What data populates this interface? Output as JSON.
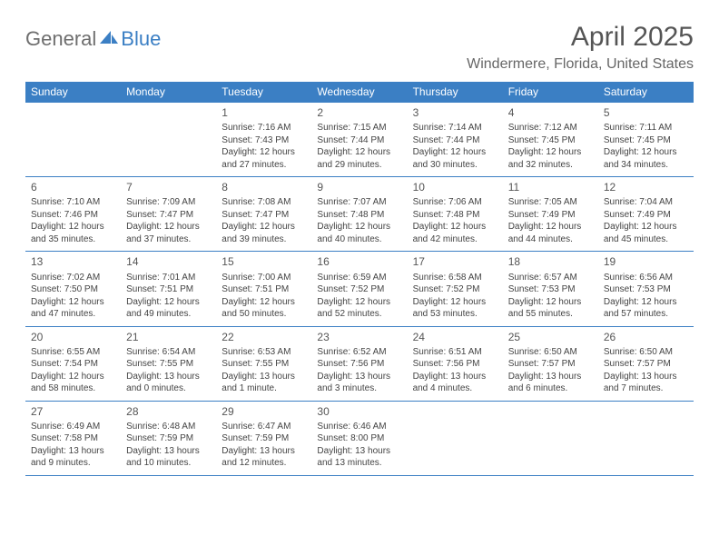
{
  "logo": {
    "word1": "General",
    "word2": "Blue"
  },
  "title": "April 2025",
  "location": "Windermere, Florida, United States",
  "colors": {
    "header_bg": "#3b7fc4",
    "header_text": "#ffffff",
    "border": "#3b7fc4",
    "logo_gray": "#6e6e6e",
    "logo_blue": "#3b7fc4",
    "title_color": "#555555",
    "body_text": "#444444"
  },
  "weekdays": [
    "Sunday",
    "Monday",
    "Tuesday",
    "Wednesday",
    "Thursday",
    "Friday",
    "Saturday"
  ],
  "weeks": [
    [
      null,
      null,
      {
        "d": "1",
        "sr": "Sunrise: 7:16 AM",
        "ss": "Sunset: 7:43 PM",
        "dl": "Daylight: 12 hours and 27 minutes."
      },
      {
        "d": "2",
        "sr": "Sunrise: 7:15 AM",
        "ss": "Sunset: 7:44 PM",
        "dl": "Daylight: 12 hours and 29 minutes."
      },
      {
        "d": "3",
        "sr": "Sunrise: 7:14 AM",
        "ss": "Sunset: 7:44 PM",
        "dl": "Daylight: 12 hours and 30 minutes."
      },
      {
        "d": "4",
        "sr": "Sunrise: 7:12 AM",
        "ss": "Sunset: 7:45 PM",
        "dl": "Daylight: 12 hours and 32 minutes."
      },
      {
        "d": "5",
        "sr": "Sunrise: 7:11 AM",
        "ss": "Sunset: 7:45 PM",
        "dl": "Daylight: 12 hours and 34 minutes."
      }
    ],
    [
      {
        "d": "6",
        "sr": "Sunrise: 7:10 AM",
        "ss": "Sunset: 7:46 PM",
        "dl": "Daylight: 12 hours and 35 minutes."
      },
      {
        "d": "7",
        "sr": "Sunrise: 7:09 AM",
        "ss": "Sunset: 7:47 PM",
        "dl": "Daylight: 12 hours and 37 minutes."
      },
      {
        "d": "8",
        "sr": "Sunrise: 7:08 AM",
        "ss": "Sunset: 7:47 PM",
        "dl": "Daylight: 12 hours and 39 minutes."
      },
      {
        "d": "9",
        "sr": "Sunrise: 7:07 AM",
        "ss": "Sunset: 7:48 PM",
        "dl": "Daylight: 12 hours and 40 minutes."
      },
      {
        "d": "10",
        "sr": "Sunrise: 7:06 AM",
        "ss": "Sunset: 7:48 PM",
        "dl": "Daylight: 12 hours and 42 minutes."
      },
      {
        "d": "11",
        "sr": "Sunrise: 7:05 AM",
        "ss": "Sunset: 7:49 PM",
        "dl": "Daylight: 12 hours and 44 minutes."
      },
      {
        "d": "12",
        "sr": "Sunrise: 7:04 AM",
        "ss": "Sunset: 7:49 PM",
        "dl": "Daylight: 12 hours and 45 minutes."
      }
    ],
    [
      {
        "d": "13",
        "sr": "Sunrise: 7:02 AM",
        "ss": "Sunset: 7:50 PM",
        "dl": "Daylight: 12 hours and 47 minutes."
      },
      {
        "d": "14",
        "sr": "Sunrise: 7:01 AM",
        "ss": "Sunset: 7:51 PM",
        "dl": "Daylight: 12 hours and 49 minutes."
      },
      {
        "d": "15",
        "sr": "Sunrise: 7:00 AM",
        "ss": "Sunset: 7:51 PM",
        "dl": "Daylight: 12 hours and 50 minutes."
      },
      {
        "d": "16",
        "sr": "Sunrise: 6:59 AM",
        "ss": "Sunset: 7:52 PM",
        "dl": "Daylight: 12 hours and 52 minutes."
      },
      {
        "d": "17",
        "sr": "Sunrise: 6:58 AM",
        "ss": "Sunset: 7:52 PM",
        "dl": "Daylight: 12 hours and 53 minutes."
      },
      {
        "d": "18",
        "sr": "Sunrise: 6:57 AM",
        "ss": "Sunset: 7:53 PM",
        "dl": "Daylight: 12 hours and 55 minutes."
      },
      {
        "d": "19",
        "sr": "Sunrise: 6:56 AM",
        "ss": "Sunset: 7:53 PM",
        "dl": "Daylight: 12 hours and 57 minutes."
      }
    ],
    [
      {
        "d": "20",
        "sr": "Sunrise: 6:55 AM",
        "ss": "Sunset: 7:54 PM",
        "dl": "Daylight: 12 hours and 58 minutes."
      },
      {
        "d": "21",
        "sr": "Sunrise: 6:54 AM",
        "ss": "Sunset: 7:55 PM",
        "dl": "Daylight: 13 hours and 0 minutes."
      },
      {
        "d": "22",
        "sr": "Sunrise: 6:53 AM",
        "ss": "Sunset: 7:55 PM",
        "dl": "Daylight: 13 hours and 1 minute."
      },
      {
        "d": "23",
        "sr": "Sunrise: 6:52 AM",
        "ss": "Sunset: 7:56 PM",
        "dl": "Daylight: 13 hours and 3 minutes."
      },
      {
        "d": "24",
        "sr": "Sunrise: 6:51 AM",
        "ss": "Sunset: 7:56 PM",
        "dl": "Daylight: 13 hours and 4 minutes."
      },
      {
        "d": "25",
        "sr": "Sunrise: 6:50 AM",
        "ss": "Sunset: 7:57 PM",
        "dl": "Daylight: 13 hours and 6 minutes."
      },
      {
        "d": "26",
        "sr": "Sunrise: 6:50 AM",
        "ss": "Sunset: 7:57 PM",
        "dl": "Daylight: 13 hours and 7 minutes."
      }
    ],
    [
      {
        "d": "27",
        "sr": "Sunrise: 6:49 AM",
        "ss": "Sunset: 7:58 PM",
        "dl": "Daylight: 13 hours and 9 minutes."
      },
      {
        "d": "28",
        "sr": "Sunrise: 6:48 AM",
        "ss": "Sunset: 7:59 PM",
        "dl": "Daylight: 13 hours and 10 minutes."
      },
      {
        "d": "29",
        "sr": "Sunrise: 6:47 AM",
        "ss": "Sunset: 7:59 PM",
        "dl": "Daylight: 13 hours and 12 minutes."
      },
      {
        "d": "30",
        "sr": "Sunrise: 6:46 AM",
        "ss": "Sunset: 8:00 PM",
        "dl": "Daylight: 13 hours and 13 minutes."
      },
      null,
      null,
      null
    ]
  ]
}
